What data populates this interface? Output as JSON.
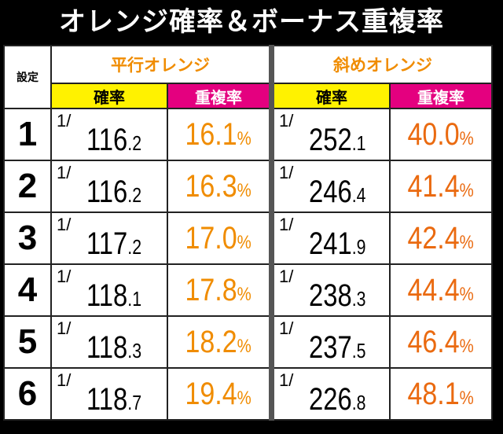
{
  "title": "オレンジ確率＆ボーナス重複率",
  "header": {
    "setting": "設定",
    "group_left": "平行オレンジ",
    "group_right": "斜めオレンジ",
    "prob": "確率",
    "overlap": "重複率",
    "fraction": "1/"
  },
  "colors": {
    "left_pct": "#f08c00",
    "right_pct": "#ea6a10",
    "group": "#f08c00"
  },
  "rows": [
    {
      "setting": "1",
      "left_prob_int": "116",
      "left_prob_dec": ".2",
      "left_pct": "16.1",
      "right_prob_int": "252",
      "right_prob_dec": ".1",
      "right_pct": "40.0"
    },
    {
      "setting": "2",
      "left_prob_int": "116",
      "left_prob_dec": ".2",
      "left_pct": "16.3",
      "right_prob_int": "246",
      "right_prob_dec": ".4",
      "right_pct": "41.4"
    },
    {
      "setting": "3",
      "left_prob_int": "117",
      "left_prob_dec": ".2",
      "left_pct": "17.0",
      "right_prob_int": "241",
      "right_prob_dec": ".9",
      "right_pct": "42.4"
    },
    {
      "setting": "4",
      "left_prob_int": "118",
      "left_prob_dec": ".1",
      "left_pct": "17.8",
      "right_prob_int": "238",
      "right_prob_dec": ".3",
      "right_pct": "44.4"
    },
    {
      "setting": "5",
      "left_prob_int": "118",
      "left_prob_dec": ".3",
      "left_pct": "18.2",
      "right_prob_int": "237",
      "right_prob_dec": ".5",
      "right_pct": "46.4"
    },
    {
      "setting": "6",
      "left_prob_int": "118",
      "left_prob_dec": ".7",
      "left_pct": "19.4",
      "right_prob_int": "226",
      "right_prob_dec": ".8",
      "right_pct": "48.1"
    }
  ],
  "pct_sign": "%"
}
